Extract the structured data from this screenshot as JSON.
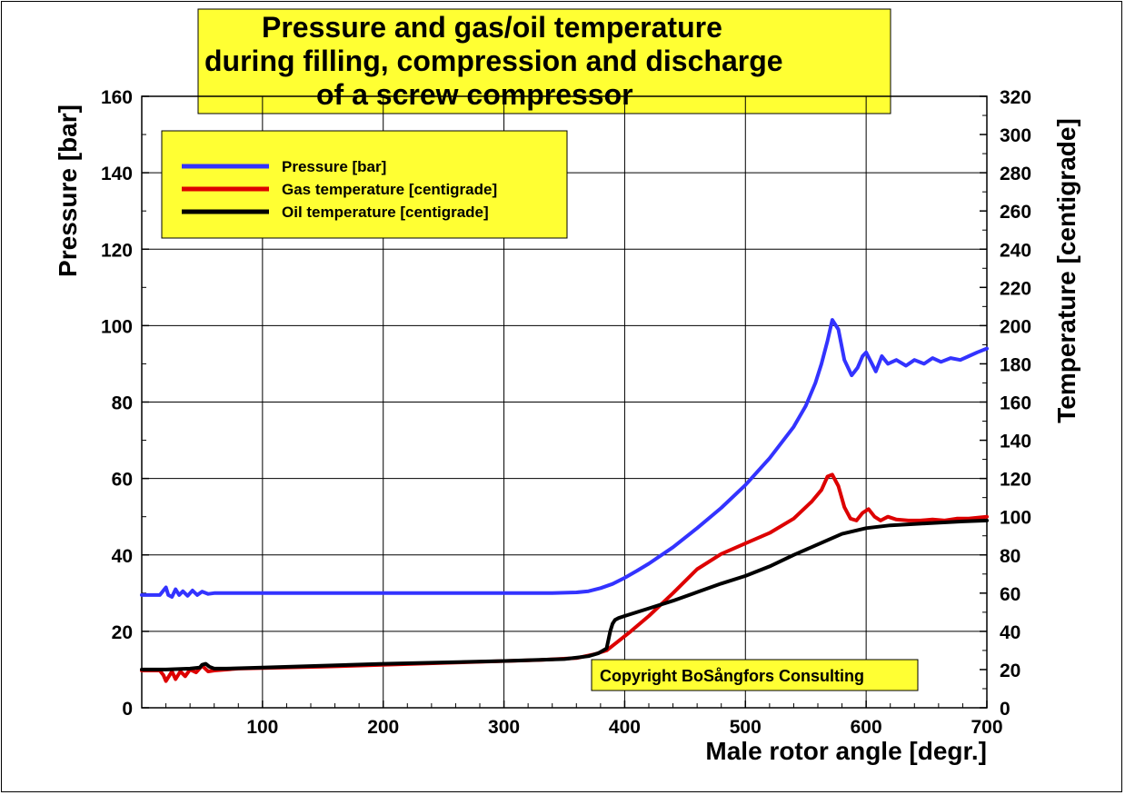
{
  "chart_data": {
    "type": "line",
    "title": [
      "Pressure and gas/oil temperature",
      "during filling, compression and discharge",
      "of a screw compressor"
    ],
    "xlabel": "Male rotor angle [degr.]",
    "ylabel": "Pressure [bar]",
    "y2label": "Temperature [centigrade]",
    "xlim": [
      0,
      700
    ],
    "ylim": [
      0,
      160
    ],
    "y2lim": [
      0,
      320
    ],
    "xticks": [
      100,
      200,
      300,
      400,
      500,
      600,
      700
    ],
    "yticks": [
      0,
      20,
      40,
      60,
      80,
      100,
      120,
      140,
      160
    ],
    "y2ticks": [
      0,
      20,
      40,
      60,
      80,
      100,
      120,
      140,
      160,
      180,
      200,
      220,
      240,
      260,
      280,
      300,
      320
    ],
    "grid": true,
    "legend_position": "top-left",
    "copyright": "Copyright BoSångfors Consulting",
    "series": [
      {
        "name": "Pressure [bar]",
        "axis": "left",
        "color": "#3333ff",
        "x": [
          0,
          15,
          20,
          22,
          25,
          28,
          31,
          34,
          38,
          42,
          46,
          50,
          55,
          60,
          80,
          150,
          250,
          340,
          360,
          370,
          380,
          390,
          400,
          410,
          420,
          440,
          460,
          480,
          500,
          520,
          540,
          550,
          558,
          563,
          568,
          572,
          577,
          582,
          588,
          593,
          597,
          600,
          604,
          608,
          613,
          618,
          625,
          633,
          640,
          648,
          655,
          662,
          670,
          678,
          685,
          692,
          700
        ],
        "values": [
          29.5,
          29.5,
          31.5,
          29.5,
          29,
          31,
          29.5,
          30.5,
          29.3,
          30.7,
          29.5,
          30.4,
          29.8,
          30,
          30,
          30,
          30,
          30,
          30.2,
          30.5,
          31.3,
          32.4,
          34,
          35.8,
          37.7,
          42,
          47,
          52.3,
          58.3,
          65.3,
          73.5,
          79,
          85,
          90,
          96,
          101.5,
          99,
          91,
          87,
          89,
          92,
          93,
          90.5,
          88,
          92,
          90,
          91,
          89.5,
          91,
          90,
          91.5,
          90.5,
          91.5,
          91,
          92,
          93,
          94
        ]
      },
      {
        "name": "Gas temperature [centigrade]",
        "axis": "right",
        "color": "#dd0000",
        "x": [
          0,
          15,
          18,
          20,
          22,
          25,
          28,
          32,
          36,
          40,
          45,
          50,
          55,
          60,
          80,
          150,
          250,
          330,
          360,
          375,
          385,
          395,
          405,
          420,
          440,
          460,
          480,
          500,
          520,
          540,
          555,
          563,
          568,
          572,
          577,
          582,
          587,
          592,
          597,
          602,
          607,
          612,
          618,
          625,
          635,
          645,
          655,
          665,
          675,
          685,
          700
        ],
        "values": [
          19.5,
          19.5,
          17,
          14,
          16,
          19,
          15,
          19,
          16.5,
          20,
          18.5,
          22,
          19,
          19.5,
          20.5,
          21.5,
          23.5,
          25,
          26,
          28,
          30,
          35,
          40,
          48,
          60,
          72.5,
          80.5,
          86,
          91.5,
          99,
          108,
          114,
          121,
          122,
          116,
          105,
          99,
          98,
          102,
          104,
          100,
          98,
          100,
          98.5,
          98,
          98,
          98.5,
          98,
          99,
          99,
          100
        ]
      },
      {
        "name": "Oil temperature [centigrade]",
        "axis": "right",
        "color": "#000000",
        "x": [
          0,
          15,
          20,
          40,
          48,
          50,
          53,
          56,
          60,
          70,
          100,
          200,
          300,
          350,
          370,
          378,
          385,
          388,
          390,
          392,
          395,
          400,
          420,
          440,
          460,
          480,
          500,
          520,
          540,
          560,
          580,
          600,
          620,
          650,
          680,
          700
        ],
        "values": [
          20,
          20,
          20,
          20.5,
          21,
          22.5,
          23,
          21.5,
          20.5,
          20.5,
          21,
          23,
          24.5,
          25.5,
          27,
          28.5,
          31,
          40,
          44,
          46,
          47,
          48,
          52,
          56,
          60.5,
          65,
          69,
          74,
          80,
          85.5,
          91,
          94,
          95.5,
          96.5,
          97.5,
          98
        ]
      }
    ]
  }
}
